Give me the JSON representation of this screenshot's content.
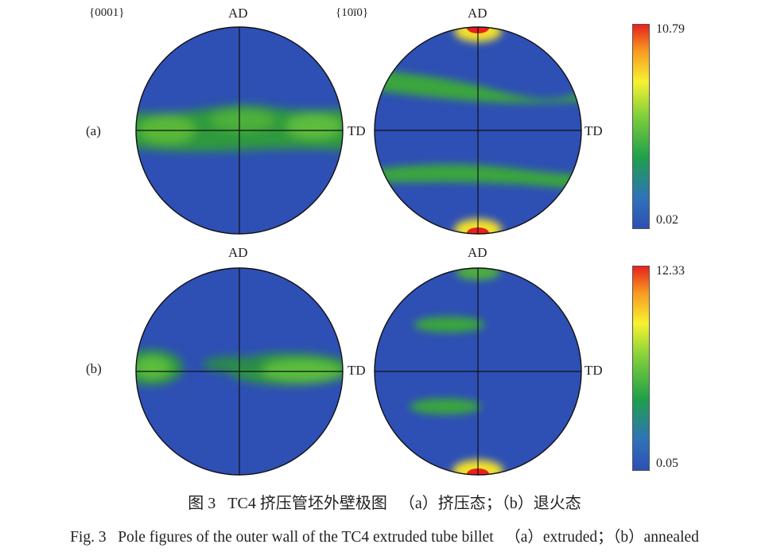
{
  "figure": {
    "plane_labels": [
      "{0001}",
      "{10ī0}"
    ],
    "axis_top": "AD",
    "axis_right": "TD",
    "rows": [
      {
        "label": "(a)",
        "colorbar": {
          "max": "10.79",
          "min": "0.02"
        }
      },
      {
        "label": "(b)",
        "colorbar": {
          "max": "12.33",
          "min": "0.05"
        }
      }
    ],
    "colormap": [
      "#2e4fb4",
      "#1fa04a",
      "#aee23a",
      "#f7f230",
      "#f89a20",
      "#e8211c"
    ]
  },
  "caption": {
    "zh": "图 3   TC4 挤压管坯外壁极图   （a）挤压态；（b）退火态",
    "en": "Fig. 3   Pole figures of the outer wall of the TC4 extruded tube billet   （a）extruded；（b）annealed"
  }
}
